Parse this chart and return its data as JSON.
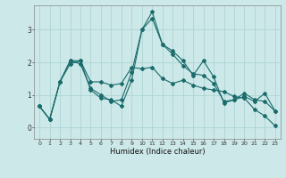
{
  "xlabel": "Humidex (Indice chaleur)",
  "background_color": "#cce8e8",
  "grid_color": "#aed4d4",
  "line_color": "#1a6b6b",
  "xlim": [
    -0.5,
    23.5
  ],
  "ylim": [
    -0.35,
    3.75
  ],
  "yticks": [
    0,
    1,
    2,
    3
  ],
  "xticks": [
    0,
    1,
    2,
    3,
    4,
    5,
    6,
    7,
    8,
    9,
    10,
    11,
    12,
    13,
    14,
    15,
    16,
    17,
    18,
    19,
    20,
    21,
    22,
    23
  ],
  "series": [
    [
      0.65,
      0.25,
      1.4,
      2.05,
      2.05,
      1.15,
      0.9,
      0.85,
      0.65,
      1.45,
      3.0,
      3.35,
      2.55,
      2.35,
      2.05,
      1.6,
      2.05,
      1.55,
      0.75,
      0.85,
      0.95,
      0.8,
      1.05,
      0.5
    ],
    [
      0.65,
      0.25,
      1.4,
      1.95,
      2.05,
      1.4,
      1.4,
      1.3,
      1.35,
      1.85,
      1.8,
      1.85,
      1.5,
      1.35,
      1.45,
      1.3,
      1.2,
      1.15,
      1.1,
      0.95,
      0.9,
      0.55,
      0.35,
      0.05
    ],
    [
      0.65,
      0.25,
      1.4,
      2.05,
      1.95,
      1.2,
      1.0,
      0.8,
      0.85,
      1.7,
      3.0,
      3.55,
      2.55,
      2.25,
      1.9,
      1.65,
      1.6,
      1.35,
      0.8,
      0.85,
      1.05,
      0.85,
      0.8,
      0.5
    ]
  ],
  "figsize": [
    3.2,
    2.0
  ],
  "dpi": 100
}
